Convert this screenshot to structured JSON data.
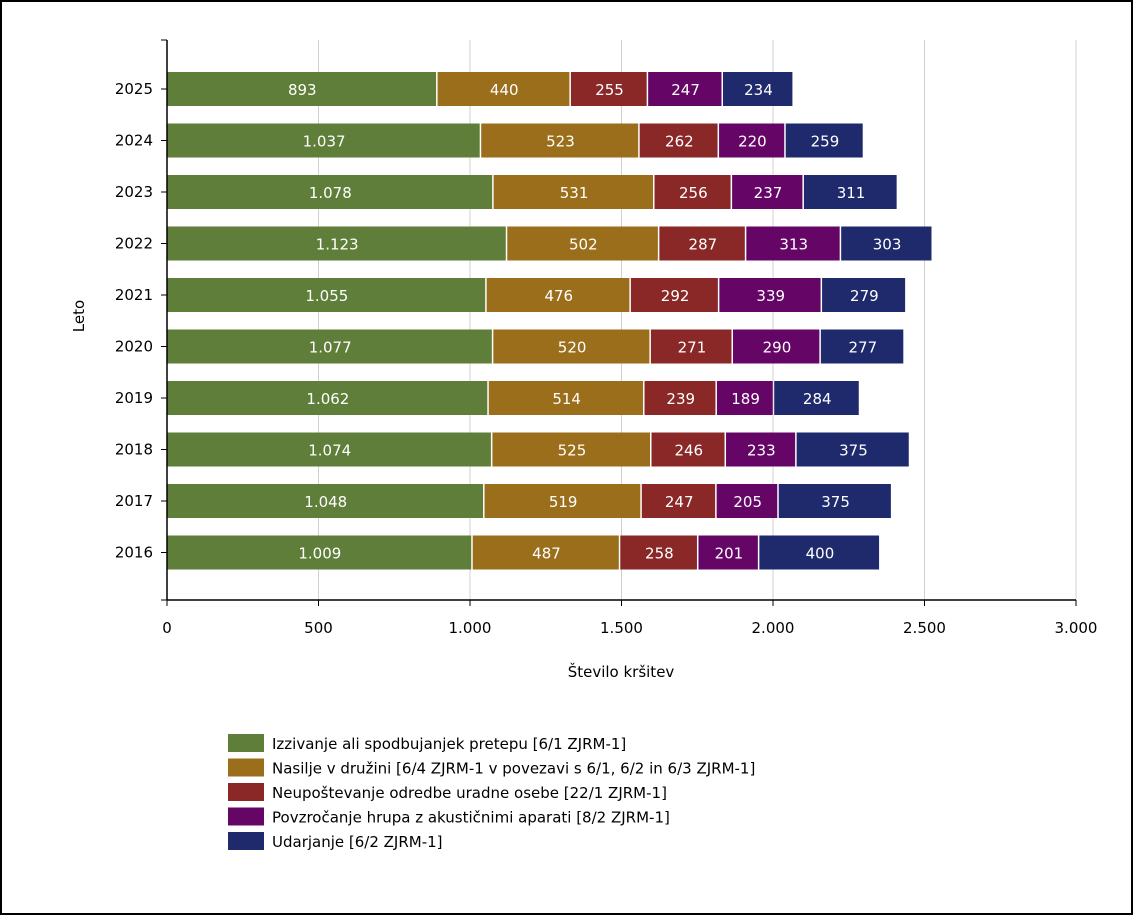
{
  "chart_data": {
    "type": "bar",
    "orientation": "horizontal",
    "stacked": true,
    "xlabel": "Število kršitev",
    "ylabel": "Leto",
    "xlim": [
      0,
      3000
    ],
    "x_ticks": [
      0,
      500,
      1000,
      1500,
      2000,
      2500,
      3000
    ],
    "x_tick_labels": [
      "0",
      "500",
      "1.000",
      "1.500",
      "2.000",
      "2.500",
      "3.000"
    ],
    "grid": "vertical",
    "legend_position": "bottom",
    "categories": [
      "2025",
      "2024",
      "2023",
      "2022",
      "2021",
      "2020",
      "2019",
      "2018",
      "2017",
      "2016"
    ],
    "series": [
      {
        "name": "Izzivanje ali spodbujanjek pretepu [6/1 ZJRM-1]",
        "color": "#5e7e39",
        "values": [
          893,
          1037,
          1078,
          1123,
          1055,
          1077,
          1062,
          1074,
          1048,
          1009
        ],
        "labels": [
          "893",
          "1.037",
          "1.078",
          "1.123",
          "1.055",
          "1.077",
          "1.062",
          "1.074",
          "1.048",
          "1.009"
        ]
      },
      {
        "name": "Nasilje v družini [6/4 ZJRM-1 v povezavi s 6/1, 6/2 in 6/3 ZJRM-1]",
        "color": "#9b6e1c",
        "values": [
          440,
          523,
          531,
          502,
          476,
          520,
          514,
          525,
          519,
          487
        ],
        "labels": [
          "440",
          "523",
          "531",
          "502",
          "476",
          "520",
          "514",
          "525",
          "519",
          "487"
        ]
      },
      {
        "name": "Neupoštevanje odredbe uradne osebe [22/1 ZJRM-1]",
        "color": "#8a2828",
        "values": [
          255,
          262,
          256,
          287,
          292,
          271,
          239,
          246,
          247,
          258
        ],
        "labels": [
          "255",
          "262",
          "256",
          "287",
          "292",
          "271",
          "239",
          "246",
          "247",
          "258"
        ]
      },
      {
        "name": "Povzročanje hrupa z akustičnimi aparati [8/2 ZJRM-1]",
        "color": "#650667",
        "values": [
          247,
          220,
          237,
          313,
          339,
          290,
          189,
          233,
          205,
          201
        ],
        "labels": [
          "247",
          "220",
          "237",
          "313",
          "339",
          "290",
          "189",
          "233",
          "205",
          "201"
        ]
      },
      {
        "name": "Udarjanje [6/2 ZJRM-1]",
        "color": "#1e2a6b",
        "values": [
          234,
          259,
          311,
          303,
          279,
          277,
          284,
          375,
          375,
          400
        ],
        "labels": [
          "234",
          "259",
          "311",
          "303",
          "279",
          "277",
          "284",
          "375",
          "375",
          "400"
        ]
      }
    ]
  }
}
